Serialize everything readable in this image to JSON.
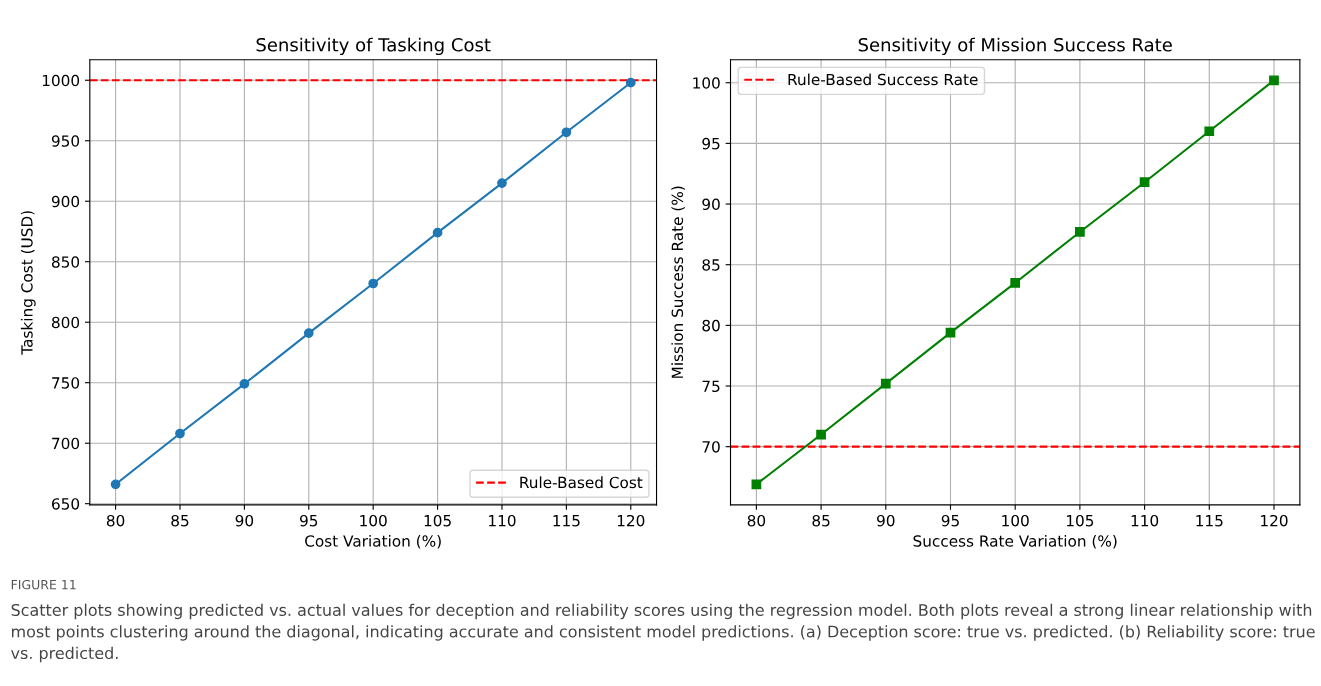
{
  "chart_data": [
    {
      "type": "line",
      "title": "Sensitivity of Tasking Cost",
      "xlabel": "Cost Variation (%)",
      "ylabel": "Tasking Cost (USD)",
      "x": [
        80,
        85,
        90,
        95,
        100,
        105,
        110,
        115,
        120
      ],
      "series": [
        {
          "color": "#1f77b4",
          "values": [
            666,
            708,
            749,
            791,
            832,
            874,
            915,
            957,
            998
          ]
        }
      ],
      "marker": "circle",
      "line_style": "solid",
      "grid": true,
      "legend": "bottom right",
      "xlim": [
        78,
        122
      ],
      "xticks": [
        80,
        85,
        90,
        95,
        100,
        105,
        110,
        115,
        120
      ],
      "ylim": [
        649,
        1017
      ],
      "yticks": [
        650,
        700,
        750,
        800,
        850,
        900,
        950,
        1000
      ],
      "ref_lines": [
        {
          "axis": "y",
          "value": 1000,
          "label": "Rule-Based Cost",
          "color": "#ff0000",
          "line_style": "dashed"
        }
      ],
      "annotations": [
        "FIGURE 11",
        "Scatter plots showing predicted vs. actual values for deception and reliability scores using the regression model. Both plots reveal a strong linear relationship with most points clustering around the diagonal, indicating accurate and consistent model predictions. (a) Deception score: true vs. predicted. (b) Reliability score: true vs. predicted."
      ]
    },
    {
      "type": "line",
      "title": "Sensitivity of Mission Success Rate",
      "xlabel": "Success Rate Variation (%)",
      "ylabel": "Mission Success Rate (%)",
      "x": [
        80,
        85,
        90,
        95,
        100,
        105,
        110,
        115,
        120
      ],
      "series": [
        {
          "color": "#008000",
          "values": [
            66.9,
            71.0,
            75.2,
            79.4,
            83.5,
            87.7,
            91.8,
            96.0,
            100.2
          ]
        }
      ],
      "marker": "square",
      "line_style": "solid",
      "grid": true,
      "legend": "top left",
      "xlim": [
        78,
        122
      ],
      "xticks": [
        80,
        85,
        90,
        95,
        100,
        105,
        110,
        115,
        120
      ],
      "ylim": [
        65.2,
        101.9
      ],
      "yticks": [
        70,
        75,
        80,
        85,
        90,
        95,
        100
      ],
      "ref_lines": [
        {
          "axis": "y",
          "value": 70,
          "label": "Rule-Based Success Rate",
          "color": "#ff0000",
          "line_style": "dashed"
        }
      ]
    }
  ]
}
